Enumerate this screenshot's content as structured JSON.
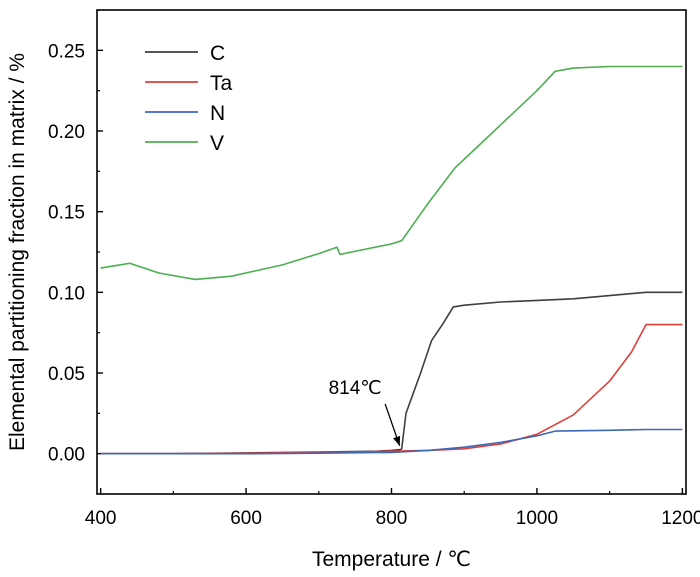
{
  "chart_data": {
    "type": "line",
    "xlabel": "Temperature / ℃",
    "ylabel": "Elemental partitioning fraction in matrix / %",
    "xlim": [
      395,
      1205
    ],
    "ylim": [
      -0.025,
      0.275
    ],
    "xticks": [
      400,
      600,
      800,
      1000,
      1200
    ],
    "xtick_labels": [
      "400",
      "600",
      "800",
      "1000",
      "1200"
    ],
    "yticks": [
      0.0,
      0.05,
      0.1,
      0.15,
      0.2,
      0.25
    ],
    "ytick_labels": [
      "0.00",
      "0.05",
      "0.10",
      "0.15",
      "0.20",
      "0.25"
    ],
    "grid": false,
    "legend_position": "top-left",
    "series": [
      {
        "name": "C",
        "color": "#3f3f3f",
        "x": [
          400,
          500,
          600,
          700,
          780,
          800,
          812,
          814,
          820,
          840,
          855,
          870,
          885,
          900,
          950,
          1000,
          1050,
          1100,
          1150,
          1200
        ],
        "y": [
          0.0,
          0.0,
          0.0005,
          0.001,
          0.0015,
          0.002,
          0.0025,
          0.003,
          0.025,
          0.05,
          0.07,
          0.08,
          0.091,
          0.092,
          0.094,
          0.095,
          0.096,
          0.098,
          0.1,
          0.1
        ]
      },
      {
        "name": "Ta",
        "color": "#e0403b",
        "x": [
          400,
          500,
          600,
          700,
          750,
          800,
          850,
          900,
          950,
          1000,
          1050,
          1100,
          1130,
          1150,
          1200
        ],
        "y": [
          0.0,
          0.0,
          0.0003,
          0.0008,
          0.001,
          0.0015,
          0.002,
          0.003,
          0.006,
          0.012,
          0.024,
          0.045,
          0.063,
          0.08,
          0.08
        ]
      },
      {
        "name": "N",
        "color": "#3b68b8",
        "x": [
          400,
          500,
          600,
          700,
          800,
          850,
          900,
          950,
          1000,
          1025,
          1100,
          1150,
          1200
        ],
        "y": [
          0.0,
          0.0,
          0.0,
          0.0003,
          0.0008,
          0.002,
          0.004,
          0.007,
          0.011,
          0.014,
          0.0145,
          0.015,
          0.015
        ]
      },
      {
        "name": "V",
        "color": "#4caf50",
        "x": [
          400,
          440,
          480,
          530,
          580,
          650,
          700,
          725,
          729,
          800,
          814,
          850,
          887,
          920,
          960,
          1000,
          1025,
          1050,
          1100,
          1200
        ],
        "y": [
          0.115,
          0.118,
          0.112,
          0.108,
          0.11,
          0.117,
          0.124,
          0.128,
          0.1235,
          0.13,
          0.132,
          0.155,
          0.177,
          0.191,
          0.208,
          0.225,
          0.237,
          0.239,
          0.24,
          0.24
        ]
      }
    ],
    "annotations": [
      {
        "text": "814℃",
        "arrow_to": {
          "x": 814,
          "y": 0.003
        },
        "text_at": {
          "x": 750,
          "y": 0.037
        }
      }
    ]
  }
}
